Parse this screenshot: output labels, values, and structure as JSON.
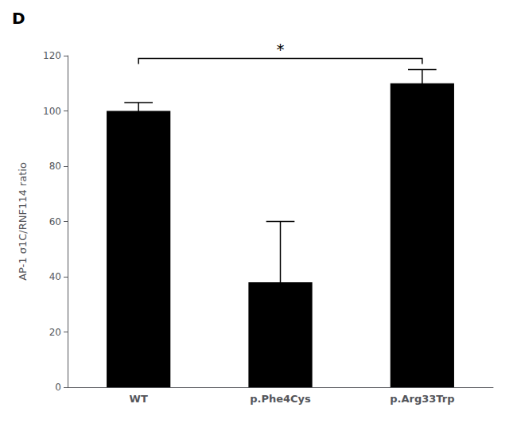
{
  "chart_data": {
    "type": "bar",
    "title": "D",
    "categories": [
      "WT",
      "p.Phe4Cys",
      "p.Arg33Trp"
    ],
    "values": [
      100,
      38,
      110
    ],
    "errors": [
      3,
      22,
      5
    ],
    "color": "#000000",
    "ylabel": "AP-1 σ1C/RNF114 ratio",
    "ylim": [
      0,
      120
    ],
    "yticks": [
      0,
      20,
      40,
      60,
      80,
      100,
      120
    ],
    "grid": false,
    "annotations": [
      {
        "text": "*",
        "between": [
          "WT",
          "p.Arg33Trp"
        ]
      }
    ]
  }
}
